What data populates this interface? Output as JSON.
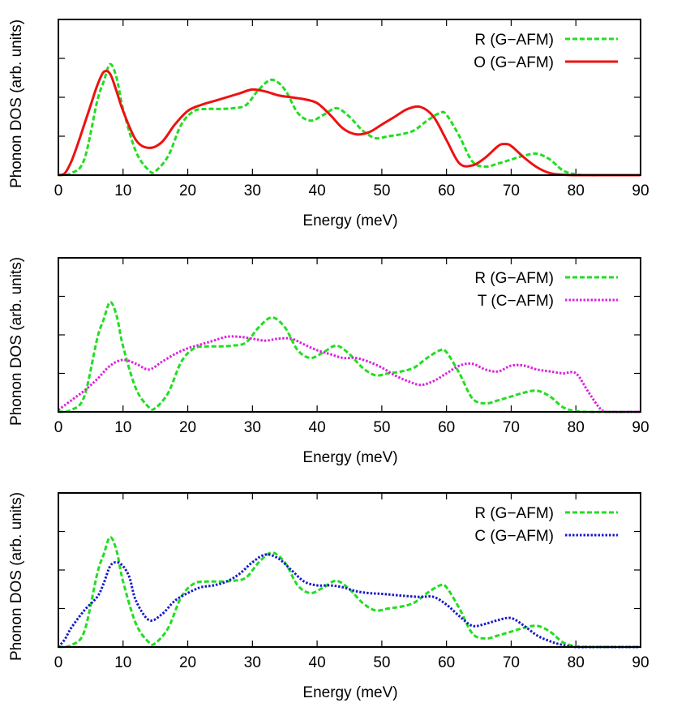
{
  "chart_data": [
    {
      "type": "line",
      "xlabel": "Energy (meV)",
      "ylabel": "Phonon DOS (arb. units)",
      "xlim": [
        0,
        90
      ],
      "ylim": [
        0,
        4
      ],
      "xticks": [
        0,
        10,
        20,
        30,
        40,
        50,
        60,
        70,
        80,
        90
      ],
      "legend_position": "top-right",
      "series": [
        {
          "name": "R (G−AFM)",
          "color": "#22dd22",
          "dash": "dashed",
          "x": [
            0,
            2,
            4,
            6,
            7,
            8,
            9,
            10,
            12,
            14,
            15,
            17,
            19,
            21,
            23,
            25,
            27,
            29,
            31,
            33,
            35,
            37,
            39,
            41,
            43,
            45,
            47,
            49,
            51,
            53,
            55,
            57,
            59,
            60,
            62,
            64,
            66,
            68,
            70,
            72,
            74,
            76,
            78,
            80,
            82,
            84,
            86,
            88,
            90
          ],
          "y": [
            0,
            0.05,
            0.4,
            1.9,
            2.4,
            2.85,
            2.5,
            1.7,
            0.6,
            0.12,
            0.1,
            0.5,
            1.3,
            1.65,
            1.7,
            1.7,
            1.72,
            1.8,
            2.2,
            2.45,
            2.2,
            1.6,
            1.4,
            1.55,
            1.72,
            1.5,
            1.15,
            0.95,
            1.0,
            1.05,
            1.15,
            1.4,
            1.6,
            1.55,
            1.0,
            0.35,
            0.22,
            0.3,
            0.4,
            0.5,
            0.55,
            0.4,
            0.12,
            0.02,
            0,
            0,
            0,
            0,
            0
          ]
        },
        {
          "name": "O (G−AFM)",
          "color": "#ee1111",
          "dash": "solid",
          "x": [
            0,
            1,
            2,
            3,
            4,
            5,
            6,
            7,
            8,
            9,
            10,
            12,
            14,
            16,
            18,
            20,
            22,
            24,
            26,
            28,
            30,
            32,
            34,
            36,
            38,
            40,
            42,
            44,
            46,
            48,
            50,
            52,
            54,
            56,
            58,
            60,
            62,
            64,
            66,
            68,
            69,
            70,
            72,
            74,
            76,
            78,
            80,
            82,
            84,
            86,
            88,
            90
          ],
          "y": [
            0,
            0.05,
            0.35,
            0.8,
            1.3,
            1.8,
            2.3,
            2.65,
            2.6,
            2.15,
            1.65,
            0.9,
            0.7,
            0.85,
            1.3,
            1.65,
            1.8,
            1.9,
            2.0,
            2.1,
            2.2,
            2.15,
            2.05,
            2.0,
            1.95,
            1.85,
            1.55,
            1.2,
            1.05,
            1.1,
            1.3,
            1.5,
            1.7,
            1.75,
            1.5,
            0.9,
            0.3,
            0.25,
            0.45,
            0.75,
            0.8,
            0.75,
            0.45,
            0.2,
            0.05,
            0.01,
            0,
            0,
            0,
            0,
            0,
            0
          ]
        }
      ]
    },
    {
      "type": "line",
      "xlabel": "Energy (meV)",
      "ylabel": "Phonon DOS (arb. units)",
      "xlim": [
        0,
        90
      ],
      "ylim": [
        0,
        4
      ],
      "xticks": [
        0,
        10,
        20,
        30,
        40,
        50,
        60,
        70,
        80,
        90
      ],
      "legend_position": "top-right",
      "series": [
        {
          "name": "R (G−AFM)",
          "color": "#22dd22",
          "dash": "dashed",
          "x": [
            0,
            2,
            4,
            6,
            7,
            8,
            9,
            10,
            12,
            14,
            15,
            17,
            19,
            21,
            23,
            25,
            27,
            29,
            31,
            33,
            35,
            37,
            39,
            41,
            43,
            45,
            47,
            49,
            51,
            53,
            55,
            57,
            59,
            60,
            62,
            64,
            66,
            68,
            70,
            72,
            74,
            76,
            78,
            80,
            82,
            84,
            86,
            88,
            90
          ],
          "y": [
            0,
            0.05,
            0.4,
            1.9,
            2.4,
            2.85,
            2.5,
            1.7,
            0.6,
            0.12,
            0.1,
            0.5,
            1.3,
            1.65,
            1.7,
            1.7,
            1.72,
            1.8,
            2.2,
            2.45,
            2.2,
            1.6,
            1.4,
            1.55,
            1.72,
            1.5,
            1.15,
            0.95,
            1.0,
            1.05,
            1.15,
            1.4,
            1.6,
            1.55,
            1.0,
            0.35,
            0.22,
            0.3,
            0.4,
            0.5,
            0.55,
            0.4,
            0.12,
            0.02,
            0,
            0,
            0,
            0,
            0
          ]
        },
        {
          "name": "T (C−AFM)",
          "color": "#dd22dd",
          "dash": "dotted",
          "x": [
            0,
            2,
            4,
            6,
            8,
            10,
            12,
            14,
            16,
            18,
            20,
            22,
            24,
            26,
            28,
            30,
            32,
            34,
            36,
            38,
            40,
            42,
            44,
            46,
            48,
            50,
            52,
            54,
            56,
            58,
            60,
            62,
            64,
            66,
            68,
            70,
            72,
            74,
            76,
            78,
            80,
            82,
            84,
            86,
            88,
            90
          ],
          "y": [
            0.05,
            0.3,
            0.55,
            0.85,
            1.2,
            1.35,
            1.25,
            1.1,
            1.3,
            1.5,
            1.65,
            1.75,
            1.85,
            1.95,
            1.95,
            1.9,
            1.85,
            1.9,
            1.9,
            1.75,
            1.6,
            1.5,
            1.4,
            1.4,
            1.3,
            1.15,
            0.95,
            0.8,
            0.7,
            0.8,
            1.0,
            1.2,
            1.25,
            1.1,
            1.05,
            1.2,
            1.2,
            1.1,
            1.05,
            1.0,
            1.0,
            0.5,
            0.05,
            0,
            0,
            0
          ]
        }
      ]
    },
    {
      "type": "line",
      "xlabel": "Energy (meV)",
      "ylabel": "Phonon DOS (arb. units)",
      "xlim": [
        0,
        90
      ],
      "ylim": [
        0,
        4
      ],
      "xticks": [
        0,
        10,
        20,
        30,
        40,
        50,
        60,
        70,
        80,
        90
      ],
      "legend_position": "top-right",
      "series": [
        {
          "name": "R (G−AFM)",
          "color": "#22dd22",
          "dash": "dashed",
          "x": [
            0,
            2,
            4,
            6,
            7,
            8,
            9,
            10,
            12,
            14,
            15,
            17,
            19,
            21,
            23,
            25,
            27,
            29,
            31,
            33,
            35,
            37,
            39,
            41,
            43,
            45,
            47,
            49,
            51,
            53,
            55,
            57,
            59,
            60,
            62,
            64,
            66,
            68,
            70,
            72,
            74,
            76,
            78,
            80,
            82,
            84,
            86,
            88,
            90
          ],
          "y": [
            0,
            0.05,
            0.4,
            1.9,
            2.4,
            2.85,
            2.5,
            1.7,
            0.6,
            0.12,
            0.1,
            0.5,
            1.3,
            1.65,
            1.7,
            1.7,
            1.72,
            1.8,
            2.2,
            2.45,
            2.2,
            1.6,
            1.4,
            1.55,
            1.72,
            1.5,
            1.15,
            0.95,
            1.0,
            1.05,
            1.15,
            1.4,
            1.6,
            1.55,
            1.0,
            0.35,
            0.22,
            0.3,
            0.4,
            0.5,
            0.55,
            0.4,
            0.12,
            0.02,
            0,
            0,
            0,
            0,
            0
          ]
        },
        {
          "name": "C (G−AFM)",
          "color": "#1a1acc",
          "dash": "dotted",
          "x": [
            0,
            1,
            2,
            4,
            6,
            7,
            8,
            9,
            10,
            11,
            12,
            14,
            16,
            18,
            20,
            22,
            24,
            26,
            28,
            30,
            32,
            34,
            36,
            38,
            40,
            42,
            44,
            46,
            48,
            50,
            52,
            54,
            56,
            58,
            60,
            62,
            64,
            66,
            68,
            70,
            72,
            74,
            76,
            78,
            80,
            82,
            84,
            86,
            88,
            90
          ],
          "y": [
            0,
            0.2,
            0.5,
            0.95,
            1.3,
            1.65,
            2.1,
            2.2,
            2.1,
            1.8,
            1.2,
            0.7,
            0.85,
            1.2,
            1.4,
            1.55,
            1.6,
            1.7,
            1.9,
            2.2,
            2.4,
            2.3,
            2.0,
            1.7,
            1.6,
            1.6,
            1.55,
            1.45,
            1.4,
            1.38,
            1.35,
            1.32,
            1.3,
            1.3,
            1.1,
            0.8,
            0.55,
            0.6,
            0.7,
            0.75,
            0.55,
            0.3,
            0.15,
            0.05,
            0,
            0,
            0,
            0,
            0,
            0
          ]
        }
      ]
    }
  ]
}
